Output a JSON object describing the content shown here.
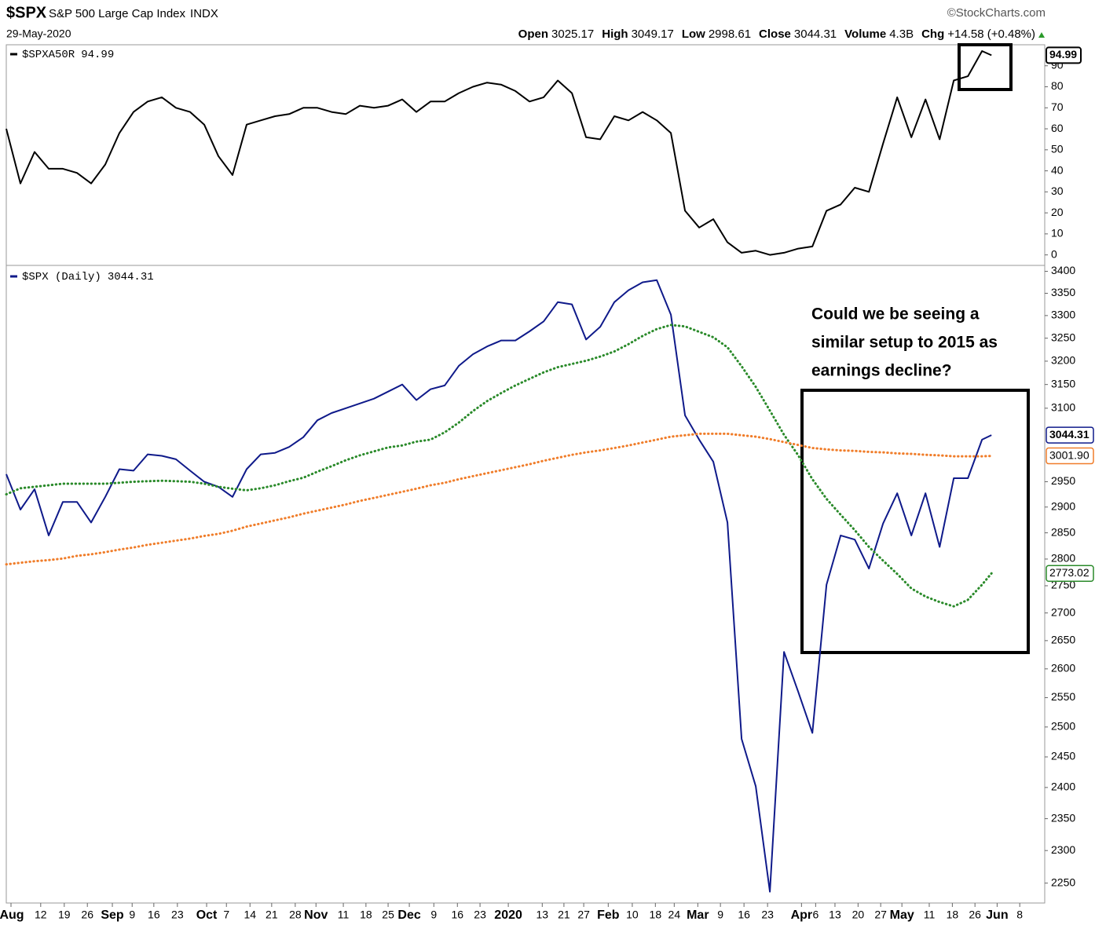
{
  "header": {
    "symbol": "$SPX",
    "name": "S&P 500 Large Cap Index",
    "exchange": "INDX",
    "date": "29-May-2020",
    "source": "©StockCharts.com",
    "quote": [
      {
        "label": "Open",
        "value": 3025.17
      },
      {
        "label": "High",
        "value": 3049.17
      },
      {
        "label": "Low",
        "value": 2998.61
      },
      {
        "label": "Close",
        "value": 3044.31
      },
      {
        "label": "Volume",
        "value": "4.3B"
      },
      {
        "label": "Chg",
        "value": "+14.58 (+0.48%)"
      }
    ]
  },
  "chart_data": [
    {
      "type": "line",
      "x": [
        0,
        3,
        6,
        9,
        12,
        15,
        18,
        21,
        24,
        27,
        30,
        33,
        36,
        39,
        42,
        45,
        48,
        51,
        54,
        57,
        60,
        63,
        66,
        69,
        72,
        75,
        78,
        81,
        84,
        87,
        90,
        93,
        96,
        99,
        102,
        105,
        108,
        111,
        114,
        117,
        120,
        123,
        126,
        129,
        132,
        135,
        138,
        141,
        144,
        147,
        150,
        153,
        156,
        159,
        162,
        165,
        168,
        171,
        174,
        177,
        180,
        183,
        186,
        189,
        192,
        195,
        198,
        201,
        204,
        207,
        209
      ],
      "xlim": [
        0,
        220.3
      ],
      "ylim": [
        -5,
        100
      ],
      "yticks": [
        0,
        10,
        20,
        30,
        40,
        50,
        60,
        70,
        80,
        90
      ],
      "series": [
        {
          "name": "$SPXA50R",
          "color": "#000000",
          "style": "solid",
          "values": [
            60,
            34,
            49,
            41,
            41,
            39,
            34,
            43,
            58,
            68,
            73,
            75,
            70,
            68,
            62,
            47,
            38,
            62,
            64,
            66,
            67,
            70,
            70,
            68,
            67,
            71,
            70,
            71,
            74,
            68,
            73,
            73,
            77,
            80,
            82,
            81,
            78,
            73,
            75,
            83,
            77,
            56,
            55,
            66,
            64,
            68,
            64,
            58,
            21,
            13,
            17,
            6,
            1,
            2,
            0,
            1,
            3,
            4,
            21,
            24,
            32,
            30,
            53,
            75,
            56,
            74,
            55,
            83,
            85,
            97,
            94.99
          ]
        }
      ]
    },
    {
      "type": "line",
      "log_scale": true,
      "x": [
        0,
        3,
        6,
        9,
        12,
        15,
        18,
        21,
        24,
        27,
        30,
        33,
        36,
        39,
        42,
        45,
        48,
        51,
        54,
        57,
        60,
        63,
        66,
        69,
        72,
        75,
        78,
        81,
        84,
        87,
        90,
        93,
        96,
        99,
        102,
        105,
        108,
        111,
        114,
        117,
        120,
        123,
        126,
        129,
        132,
        135,
        138,
        141,
        144,
        147,
        150,
        153,
        156,
        159,
        162,
        165,
        168,
        171,
        174,
        177,
        180,
        183,
        186,
        189,
        192,
        195,
        198,
        201,
        204,
        207,
        209
      ],
      "xlim": [
        0,
        220.3
      ],
      "ylim": [
        2220,
        3410
      ],
      "yticks": [
        2250,
        2300,
        2350,
        2400,
        2450,
        2500,
        2550,
        2600,
        2650,
        2700,
        2750,
        2800,
        2850,
        2900,
        2950,
        3100,
        3150,
        3200,
        3250,
        3300,
        3350,
        3400
      ],
      "xticks": [
        {
          "value": 1,
          "label": "Aug"
        },
        {
          "value": 7.3,
          "label": "12"
        },
        {
          "value": 12.3,
          "label": "19"
        },
        {
          "value": 17.2,
          "label": "26"
        },
        {
          "value": 22.5,
          "label": "Sep"
        },
        {
          "value": 26.7,
          "label": "9"
        },
        {
          "value": 31.3,
          "label": "16"
        },
        {
          "value": 36.3,
          "label": "23"
        },
        {
          "value": 42.5,
          "label": "Oct"
        },
        {
          "value": 46.7,
          "label": "7"
        },
        {
          "value": 51.7,
          "label": "14"
        },
        {
          "value": 56.3,
          "label": "21"
        },
        {
          "value": 61.3,
          "label": "28"
        },
        {
          "value": 65.7,
          "label": "Nov"
        },
        {
          "value": 71.5,
          "label": "11"
        },
        {
          "value": 76.3,
          "label": "18"
        },
        {
          "value": 81,
          "label": "25"
        },
        {
          "value": 85.5,
          "label": "Dec"
        },
        {
          "value": 90.7,
          "label": "9"
        },
        {
          "value": 95.7,
          "label": "16"
        },
        {
          "value": 100.5,
          "label": "23"
        },
        {
          "value": 106.5,
          "label": "2020"
        },
        {
          "value": 113.7,
          "label": "13"
        },
        {
          "value": 118.3,
          "label": "21"
        },
        {
          "value": 122.5,
          "label": "27"
        },
        {
          "value": 127.7,
          "label": "Feb"
        },
        {
          "value": 132.8,
          "label": "10"
        },
        {
          "value": 137.7,
          "label": "18"
        },
        {
          "value": 141.7,
          "label": "24"
        },
        {
          "value": 146.7,
          "label": "Mar"
        },
        {
          "value": 151.5,
          "label": "9"
        },
        {
          "value": 156.5,
          "label": "16"
        },
        {
          "value": 161.5,
          "label": "23"
        },
        {
          "value": 168.7,
          "label": "Apr"
        },
        {
          "value": 171.7,
          "label": "6"
        },
        {
          "value": 175.8,
          "label": "13"
        },
        {
          "value": 180.7,
          "label": "20"
        },
        {
          "value": 185.5,
          "label": "27"
        },
        {
          "value": 190,
          "label": "May"
        },
        {
          "value": 195.8,
          "label": "11"
        },
        {
          "value": 200.7,
          "label": "18"
        },
        {
          "value": 205.5,
          "label": "26"
        },
        {
          "value": 210.2,
          "label": "Jun"
        },
        {
          "value": 215,
          "label": "8"
        }
      ],
      "annotation": [
        "Could we be seeing a",
        "similar setup to 2015 as",
        "earnings decline?"
      ],
      "series": [
        {
          "name": "$SPX (Daily)",
          "color": "#0f1a8a",
          "style": "solid",
          "values": [
            2965,
            2895,
            2935,
            2845,
            2910,
            2910,
            2870,
            2920,
            2975,
            2972,
            3005,
            3002,
            2995,
            2972,
            2950,
            2940,
            2920,
            2975,
            3005,
            3008,
            3020,
            3040,
            3075,
            3090,
            3100,
            3110,
            3120,
            3135,
            3150,
            3117,
            3140,
            3148,
            3190,
            3215,
            3232,
            3245,
            3245,
            3265,
            3287,
            3330,
            3325,
            3247,
            3275,
            3330,
            3357,
            3375,
            3380,
            3302,
            3085,
            3035,
            2990,
            2870,
            2480,
            2402,
            2237,
            2630,
            2560,
            2490,
            2752,
            2845,
            2837,
            2782,
            2868,
            2927,
            2845,
            2927,
            2823,
            2957,
            2957,
            3035,
            3044.31
          ]
        },
        {
          "color": "#2a8a2a",
          "style": "dotted",
          "values": [
            2925,
            2937,
            2940,
            2943,
            2946,
            2946,
            2946,
            2946,
            2948,
            2950,
            2951,
            2952,
            2951,
            2950,
            2946,
            2940,
            2936,
            2933,
            2937,
            2943,
            2951,
            2958,
            2970,
            2981,
            2993,
            3003,
            3011,
            3019,
            3023,
            3031,
            3035,
            3050,
            3070,
            3094,
            3115,
            3132,
            3148,
            3162,
            3176,
            3187,
            3194,
            3201,
            3210,
            3221,
            3237,
            3255,
            3270,
            3279,
            3276,
            3264,
            3252,
            3230,
            3189,
            3145,
            3095,
            3045,
            3003,
            2955,
            2916,
            2885,
            2855,
            2823,
            2797,
            2772,
            2745,
            2730,
            2720,
            2712,
            2724,
            2752,
            2773.02
          ]
        },
        {
          "color": "#f07d2a",
          "style": "dotted",
          "values": [
            2790,
            2793,
            2796,
            2798,
            2801,
            2806,
            2809,
            2813,
            2818,
            2822,
            2827,
            2831,
            2835,
            2839,
            2844,
            2848,
            2854,
            2862,
            2868,
            2874,
            2880,
            2887,
            2893,
            2899,
            2905,
            2912,
            2918,
            2924,
            2930,
            2936,
            2943,
            2948,
            2955,
            2961,
            2967,
            2973,
            2979,
            2985,
            2992,
            2998,
            3004,
            3009,
            3013,
            3018,
            3023,
            3029,
            3035,
            3041,
            3044,
            3047,
            3047,
            3047,
            3044,
            3041,
            3036,
            3030,
            3024,
            3018,
            3015,
            3013,
            3012,
            3010,
            3009,
            3007,
            3006,
            3004,
            3003,
            3001,
            3001,
            3001,
            3001.9
          ],
          "value_labels": [
            null,
            null,
            null,
            null,
            null,
            null,
            null,
            null,
            null,
            null,
            null,
            null,
            null,
            null,
            null,
            null,
            null,
            null,
            null,
            null,
            null,
            null,
            null,
            null,
            null,
            null,
            null,
            null,
            null,
            null,
            null,
            null,
            null,
            null,
            null,
            null,
            null,
            null,
            null,
            null,
            null,
            null,
            null,
            null,
            null,
            null,
            null,
            null,
            null,
            null,
            null,
            null,
            null,
            null,
            null,
            null,
            null,
            null,
            null,
            null,
            null,
            null,
            null,
            null,
            null,
            null,
            null,
            null,
            null,
            null,
            "3001.90"
          ]
        }
      ]
    }
  ]
}
